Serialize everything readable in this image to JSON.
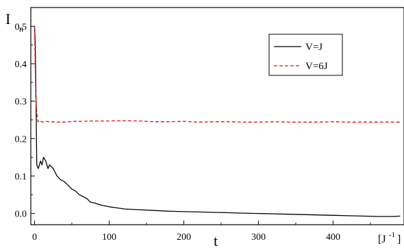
{
  "chart_data": {
    "type": "line",
    "ylabel": "I",
    "ylabel_sub": "n",
    "xlabel": "t",
    "x_unit": "[J",
    "x_unit_sup": "-1",
    "x_unit_close": "]",
    "xlim": [
      -5,
      495
    ],
    "ylim": [
      -0.03,
      0.55
    ],
    "xticks": [
      0,
      100,
      200,
      300,
      400
    ],
    "xtick_labels": [
      "0",
      "100",
      "200",
      "300",
      "400"
    ],
    "yticks": [
      0.0,
      0.1,
      0.2,
      0.3,
      0.4,
      0.5
    ],
    "ytick_labels": [
      "0.0",
      "0.1",
      "0.2",
      "0.3",
      "0.4",
      "0.5"
    ],
    "legend_position": "top-right",
    "series": [
      {
        "name": "V=J",
        "color": "#000000",
        "style": "solid",
        "x": [
          0,
          1,
          2,
          3,
          5,
          8,
          10,
          12,
          15,
          18,
          20,
          25,
          30,
          35,
          40,
          45,
          50,
          55,
          60,
          65,
          70,
          75,
          80,
          90,
          100,
          110,
          120,
          140,
          160,
          180,
          200,
          220,
          240,
          260,
          280,
          300,
          320,
          340,
          360,
          380,
          400,
          420,
          440,
          460,
          480,
          490
        ],
        "y": [
          0.5,
          0.45,
          0.3,
          0.13,
          0.12,
          0.14,
          0.13,
          0.15,
          0.14,
          0.12,
          0.13,
          0.12,
          0.1,
          0.09,
          0.085,
          0.075,
          0.065,
          0.06,
          0.05,
          0.045,
          0.04,
          0.03,
          0.028,
          0.022,
          0.018,
          0.015,
          0.012,
          0.01,
          0.008,
          0.006,
          0.005,
          0.004,
          0.003,
          0.002,
          0.001,
          0.0,
          -0.001,
          -0.002,
          -0.003,
          -0.004,
          -0.005,
          -0.006,
          -0.007,
          -0.008,
          -0.008,
          -0.007
        ]
      },
      {
        "name": "V=6J",
        "color": "#dd1111",
        "style": "dashed",
        "x": [
          0,
          1,
          2,
          3,
          4,
          5,
          7,
          10,
          15,
          20,
          30,
          40,
          50,
          60,
          80,
          100,
          120,
          140,
          160,
          180,
          200,
          220,
          240,
          260,
          280,
          300,
          320,
          340,
          360,
          380,
          400,
          420,
          440,
          460,
          480,
          490
        ],
        "y": [
          0.5,
          0.38,
          0.3,
          0.27,
          0.25,
          0.245,
          0.248,
          0.244,
          0.246,
          0.245,
          0.244,
          0.244,
          0.246,
          0.246,
          0.247,
          0.247,
          0.248,
          0.247,
          0.245,
          0.245,
          0.246,
          0.244,
          0.245,
          0.245,
          0.244,
          0.244,
          0.245,
          0.244,
          0.244,
          0.244,
          0.245,
          0.244,
          0.244,
          0.244,
          0.244,
          0.244
        ]
      }
    ]
  }
}
